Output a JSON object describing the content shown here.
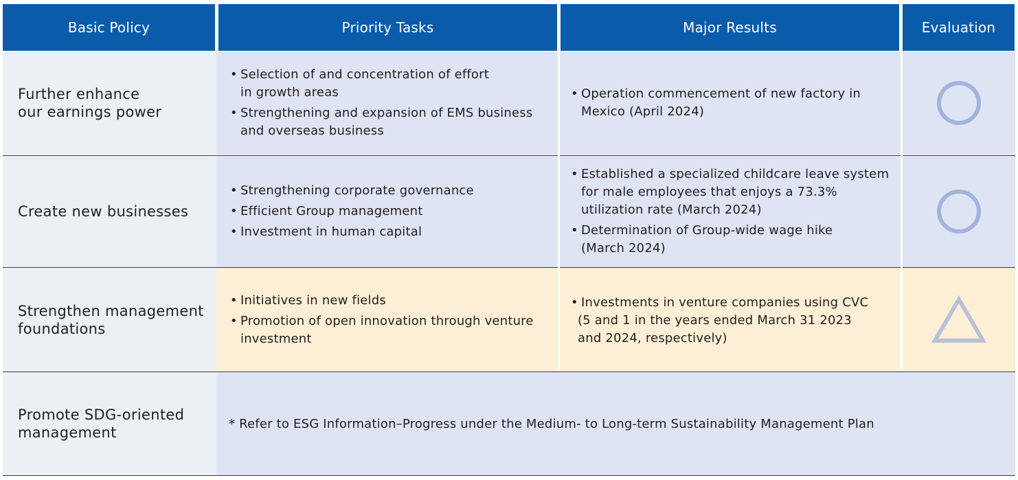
{
  "colors": {
    "header_bg": "#0a5cab",
    "policy_bg": "#eaf0f4",
    "blue_row_bg": "#dfe4f4",
    "cream_row_bg": "#fdefd6",
    "symbol": "#a3b4dc"
  },
  "headers": {
    "basic_policy": "Basic Policy",
    "priority_tasks": "Priority Tasks",
    "major_results": "Major Results",
    "evaluation": "Evaluation"
  },
  "rows": [
    {
      "policy": "Further enhance\nour earnings power",
      "tasks": [
        "Selection of and concentration of effort\nin growth areas",
        "Strengthening and expansion of EMS business\nand overseas business"
      ],
      "results": [
        "Operation commencement of new factory in\nMexico (April 2024)"
      ],
      "evaluation": "circle-icon"
    },
    {
      "policy": "Create new businesses",
      "tasks": [
        "Strengthening corporate governance",
        "Efficient Group management",
        "Investment in human capital"
      ],
      "results": [
        "Established a specialized childcare leave system\nfor male employees that enjoys a 73.3%\nutilization rate (March 2024)",
        "Determination of Group-wide wage hike\n(March 2024)"
      ],
      "evaluation": "circle-icon"
    },
    {
      "policy": "Strengthen management\nfoundations",
      "tasks": [
        "Initiatives in new fields",
        "Promotion of open innovation through venture\ninvestment"
      ],
      "results": [
        "Investments in venture companies using CVC",
        "(5 and 1 in the years ended March 31 2023\nand 2024, respectively)"
      ],
      "evaluation": "triangle-icon"
    },
    {
      "policy": "Promote SDG-oriented\nmanagement",
      "note": "* Refer to ESG Information–Progress under the Medium- to Long-term Sustainability Management Plan"
    }
  ]
}
